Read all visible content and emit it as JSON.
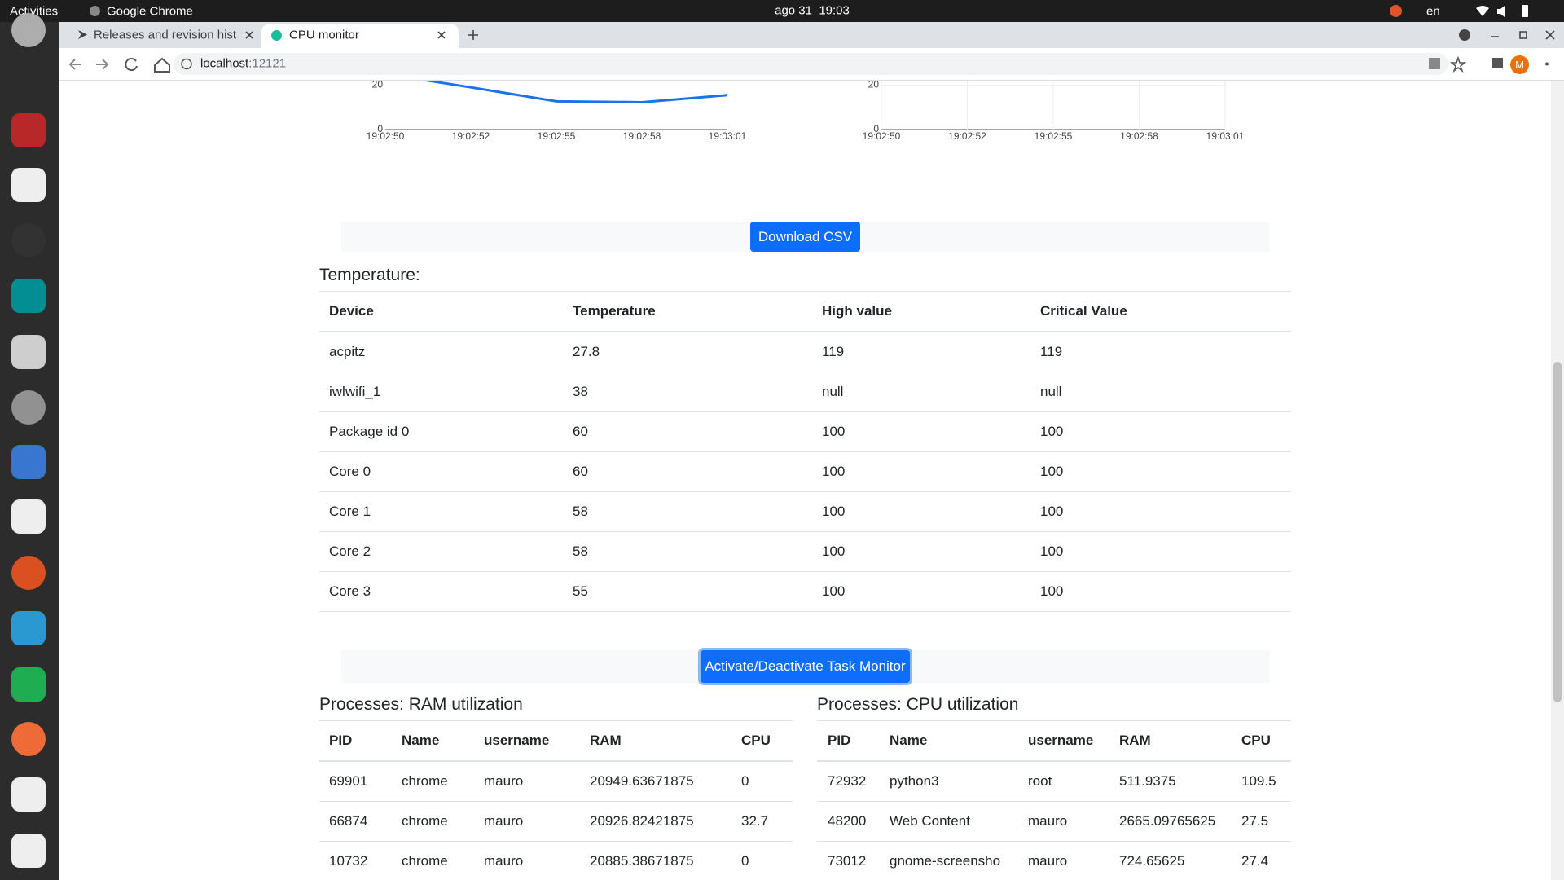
{
  "topbar": {
    "activities": "Activities",
    "app": "Google Chrome",
    "clock": "ago 31  19:03",
    "lang": "en"
  },
  "tabs": [
    "Releases and revision hist",
    "CPU monitor"
  ],
  "url": {
    "host": "localhost",
    "port": ":12121"
  },
  "profile": "M",
  "charts": [
    {
      "type": "line",
      "categories": [
        "19:02:50",
        "19:02:52",
        "19:02:55",
        "19:02:58",
        "19:03:01"
      ],
      "ylim": [
        0,
        22
      ],
      "yticks": [
        0,
        20
      ],
      "grid": false,
      "series": [
        {
          "color": "#1a73e8",
          "values": [
            25,
            19,
            12.7,
            12.3,
            15.5
          ]
        }
      ]
    },
    {
      "type": "line",
      "categories": [
        "19:02:50",
        "19:02:52",
        "19:02:55",
        "19:02:58",
        "19:03:01"
      ],
      "ylim": [
        0,
        22
      ],
      "yticks": [
        0,
        20
      ],
      "grid": true,
      "series": []
    }
  ],
  "buttons": {
    "download": "Download CSV",
    "toggle": "Activate/Deactivate Task Monitor"
  },
  "temperature": {
    "title": "Temperature:",
    "columns": [
      "Device",
      "Temperature",
      "High value",
      "Critical Value"
    ],
    "rows": [
      [
        "acpitz",
        "27.8",
        "119",
        "119"
      ],
      [
        "iwlwifi_1",
        "38",
        "null",
        "null"
      ],
      [
        "Package id 0",
        "60",
        "100",
        "100"
      ],
      [
        "Core 0",
        "60",
        "100",
        "100"
      ],
      [
        "Core 1",
        "58",
        "100",
        "100"
      ],
      [
        "Core 2",
        "58",
        "100",
        "100"
      ],
      [
        "Core 3",
        "55",
        "100",
        "100"
      ]
    ]
  },
  "ram": {
    "title": "Processes: RAM utilization",
    "columns": [
      "PID",
      "Name",
      "username",
      "RAM",
      "CPU"
    ],
    "rows": [
      [
        "69901",
        "chrome",
        "mauro",
        "20949.63671875",
        "0"
      ],
      [
        "66874",
        "chrome",
        "mauro",
        "20926.82421875",
        "32.7"
      ],
      [
        "10732",
        "chrome",
        "mauro",
        "20885.38671875",
        "0"
      ]
    ]
  },
  "cpu": {
    "title": "Processes: CPU utilization",
    "columns": [
      "PID",
      "Name",
      "username",
      "RAM",
      "CPU"
    ],
    "rows": [
      [
        "72932",
        "python3",
        "root",
        "511.9375",
        "109.5"
      ],
      [
        "48200",
        "Web Content",
        "mauro",
        "2665.09765625",
        "27.5"
      ],
      [
        "73012",
        "gnome-screensho",
        "mauro",
        "724.65625",
        "27.4"
      ]
    ]
  }
}
